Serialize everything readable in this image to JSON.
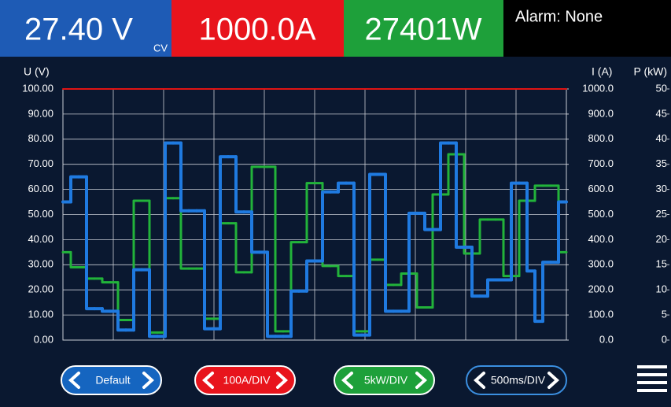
{
  "header": {
    "voltage": "27.40 V",
    "mode": "CV",
    "current": "1000.0A",
    "power": "27401W",
    "alarm": "Alarm: None"
  },
  "chart_data": {
    "type": "line",
    "ylabel": "U (V)",
    "y2label": "I (A)",
    "y3label": "P (kW)",
    "ylim": [
      0,
      100
    ],
    "yticks": [
      {
        "value": 0,
        "label": "0.00"
      },
      {
        "value": 10,
        "label": "10.00"
      },
      {
        "value": 20,
        "label": "20.00"
      },
      {
        "value": 30,
        "label": "30.00"
      },
      {
        "value": 40,
        "label": "40.00"
      },
      {
        "value": 50,
        "label": "50.00"
      },
      {
        "value": 60,
        "label": "60.00"
      },
      {
        "value": 70,
        "label": "70.00"
      },
      {
        "value": 80,
        "label": "80.00"
      },
      {
        "value": 90,
        "label": "90.00"
      },
      {
        "value": 100,
        "label": "100.00"
      }
    ],
    "y2lim": [
      0,
      1000
    ],
    "y2ticks": [
      {
        "value": 0,
        "label": "0.0"
      },
      {
        "value": 100,
        "label": "100.0"
      },
      {
        "value": 200,
        "label": "200.0"
      },
      {
        "value": 300,
        "label": "300.0"
      },
      {
        "value": 400,
        "label": "400.0"
      },
      {
        "value": 500,
        "label": "500.0"
      },
      {
        "value": 600,
        "label": "600.0"
      },
      {
        "value": 700,
        "label": "700.0"
      },
      {
        "value": 800,
        "label": "800.0"
      },
      {
        "value": 900,
        "label": "900.0"
      },
      {
        "value": 1000,
        "label": "1000.0"
      }
    ],
    "y3lim": [
      0,
      50
    ],
    "y3ticks": [
      0,
      5,
      10,
      15,
      20,
      25,
      30,
      35,
      40,
      45,
      50
    ],
    "grid": true,
    "series": [
      {
        "name": "U",
        "color": "#1f7ae0",
        "axis": "y",
        "values": [
          55,
          65,
          65,
          12.5,
          12.5,
          11.5,
          11.5,
          4,
          4,
          28,
          28,
          1.5,
          1.5,
          78.5,
          78.5,
          51.5,
          51.5,
          51.5,
          4.5,
          4.5,
          73,
          73,
          51,
          51,
          35,
          35,
          1.5,
          1.5,
          1.5,
          19.5,
          19.5,
          31.5,
          31.5,
          59,
          59,
          62.5,
          62.5,
          2,
          2,
          66,
          66,
          11.5,
          11.5,
          11.5,
          50.5,
          50.5,
          44,
          44,
          78.5,
          78.5,
          37,
          37,
          17.5,
          17.5,
          24,
          24,
          24,
          62.5,
          62.5,
          27.5,
          7.5,
          31,
          31,
          55
        ]
      },
      {
        "name": "P",
        "color": "#22b33a",
        "axis": "y3",
        "values": [
          17.5,
          14.5,
          14.5,
          12.25,
          12.25,
          11.5,
          11.5,
          4,
          4,
          27.75,
          27.75,
          1.5,
          1.5,
          28.25,
          28.25,
          14.25,
          14.25,
          14.25,
          4.25,
          4.25,
          23.25,
          23.25,
          13.5,
          13.5,
          34.5,
          34.5,
          34.5,
          1.75,
          1.75,
          19.5,
          19.5,
          31.25,
          31.25,
          14.75,
          14.75,
          12.75,
          12.75,
          1.75,
          1.75,
          16,
          16,
          11,
          11,
          13.25,
          13.25,
          6.5,
          6.5,
          29,
          29,
          37,
          37,
          17.25,
          17.25,
          24,
          24,
          24,
          12.75,
          12.75,
          27.75,
          27.75,
          30.75,
          30.75,
          30.75,
          17.5
        ]
      },
      {
        "name": "I",
        "color": "#e01414",
        "axis": "y2",
        "values": [
          1000,
          1000,
          1000,
          1000,
          1000,
          1000,
          1000,
          1000,
          1000,
          1000,
          1000,
          1000,
          1000,
          1000,
          1000,
          1000,
          1000,
          1000,
          1000,
          1000,
          1000,
          1000,
          1000,
          1000,
          1000,
          1000,
          1000,
          1000,
          1000,
          1000,
          1000,
          1000,
          1000,
          1000,
          1000,
          1000,
          1000,
          1000,
          1000,
          1000,
          1000,
          1000,
          1000,
          1000,
          1000,
          1000,
          1000,
          1000,
          1000,
          1000,
          1000,
          1000,
          1000,
          1000,
          1000,
          1000,
          1000,
          1000,
          1000,
          1000,
          1000,
          1000,
          1000,
          1000
        ]
      }
    ]
  },
  "buttons": [
    "Default",
    "100A/DIV",
    "5kW/DIV",
    "500ms/DIV"
  ]
}
